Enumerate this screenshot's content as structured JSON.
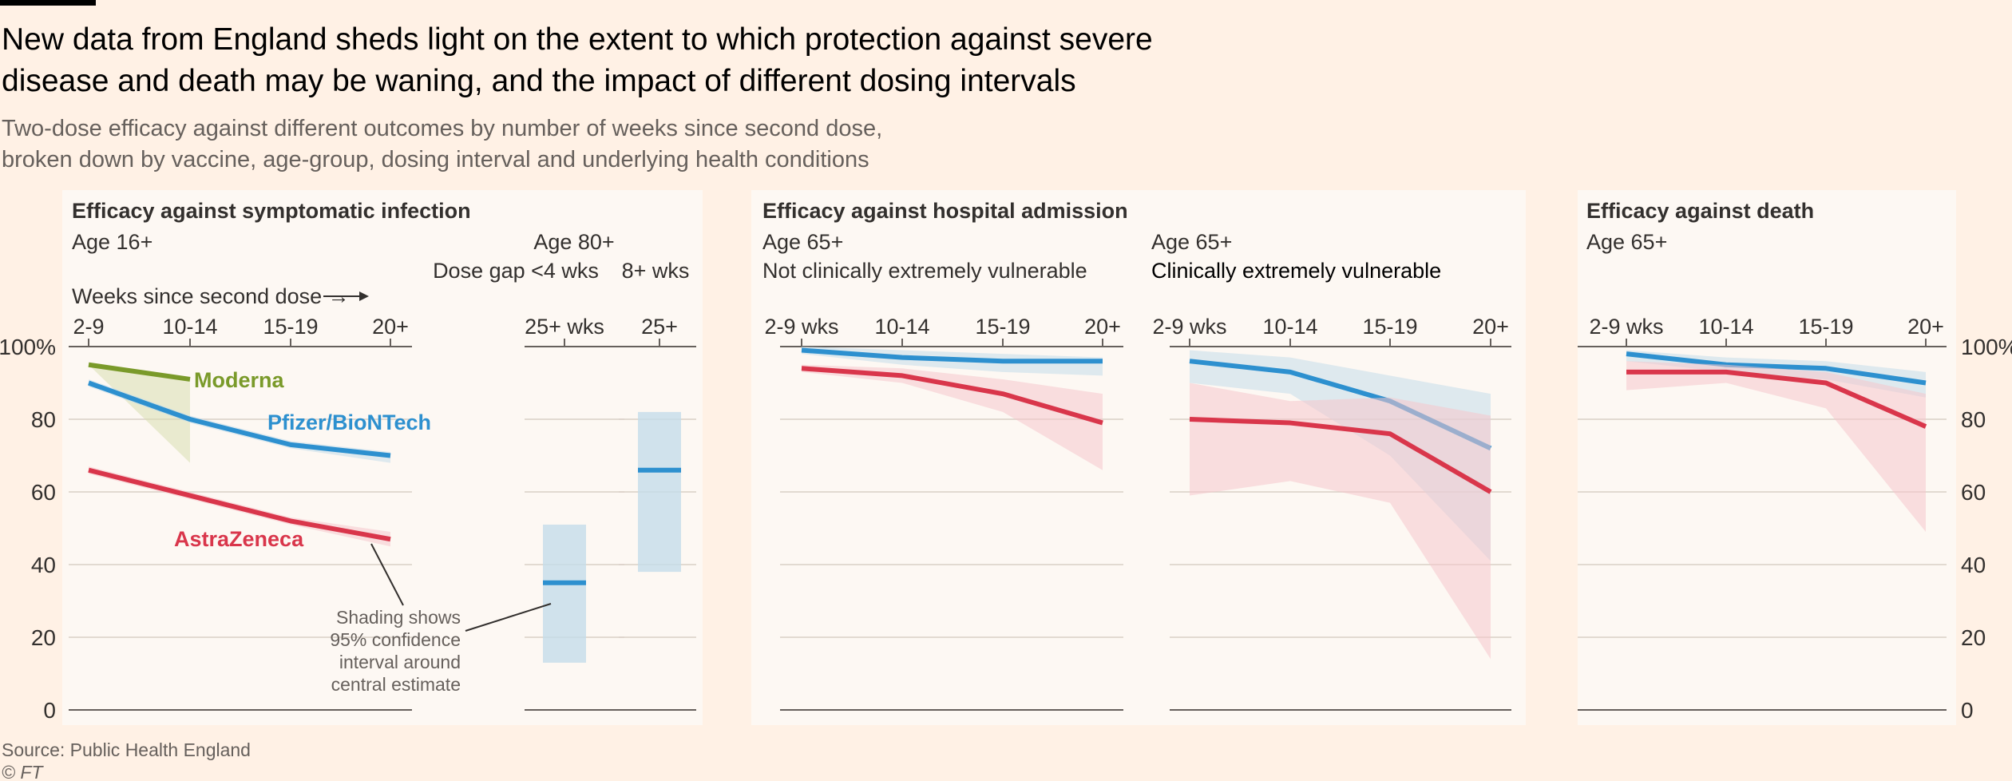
{
  "header": {
    "title_line1": "New data from England sheds light on the extent to which protection against severe",
    "title_line2": "disease and death may be waning, and the impact of different dosing intervals",
    "subtitle_line1": "Two-dose efficacy against different outcomes by number of weeks since second dose,",
    "subtitle_line2": "broken down by vaccine, age-group, dosing interval and underlying health conditions"
  },
  "colors": {
    "background": "#fff1e5",
    "panel": "#fdf8f3",
    "moderna": "#7a9a2a",
    "pfizer": "#2d90cf",
    "astrazeneca": "#d9364b",
    "moderna_ci": "#d8dfb0",
    "pfizer_ci": "#c4dcea",
    "astrazeneca_ci": "#f5c7cc",
    "grid": "#d9cfc6",
    "baseline": "#66605c"
  },
  "footer": {
    "source": "Source: Public Health England",
    "copyright": "© FT"
  },
  "chart_data": [
    {
      "id": "symptomatic",
      "type": "line",
      "title": "Efficacy against symptomatic infection",
      "group_label": "Age 16+",
      "xlabel": "Weeks since second dose →",
      "categories": [
        "2-9",
        "10-14",
        "15-19",
        "20+"
      ],
      "ylim": [
        0,
        100
      ],
      "yticks": [
        0,
        20,
        40,
        60,
        80,
        100
      ],
      "ytick_labels": [
        "0",
        "20",
        "40",
        "60",
        "80",
        "100%"
      ],
      "series": [
        {
          "name": "Moderna",
          "color_key": "moderna",
          "values": [
            95,
            91,
            null,
            null
          ],
          "ci_low": [
            95,
            68,
            null,
            null
          ],
          "ci_high": [
            95,
            91,
            null,
            null
          ]
        },
        {
          "name": "Pfizer/BioNTech",
          "color_key": "pfizer",
          "values": [
            90,
            80,
            73,
            70
          ],
          "ci_low": [
            89,
            79,
            72,
            68
          ],
          "ci_high": [
            91,
            81,
            74,
            71
          ]
        },
        {
          "name": "AstraZeneca",
          "color_key": "astrazeneca",
          "values": [
            66,
            59,
            52,
            47
          ],
          "ci_low": [
            65,
            58,
            51,
            45
          ],
          "ci_high": [
            67,
            60,
            53,
            49
          ]
        }
      ],
      "annotation": [
        "Shading shows",
        "95% confidence",
        "interval around",
        "central estimate"
      ]
    },
    {
      "id": "age80",
      "type": "bar",
      "group_label": "Age 80+",
      "panels": [
        {
          "label": "Dose gap <4 wks",
          "tick": "25+ wks",
          "series": "Pfizer/BioNTech",
          "value": 35,
          "ci_low": 13,
          "ci_high": 51
        },
        {
          "label": "8+ wks",
          "tick": "25+",
          "series": "Pfizer/BioNTech",
          "value": 66,
          "ci_low": 38,
          "ci_high": 82
        }
      ],
      "ylim": [
        0,
        100
      ]
    },
    {
      "id": "hospital",
      "type": "line",
      "title": "Efficacy against hospital admission",
      "categories": [
        "2-9 wks",
        "10-14",
        "15-19",
        "20+"
      ],
      "ylim": [
        0,
        100
      ],
      "panels": [
        {
          "label_line1": "Age 65+",
          "label_line2": "Not clinically extremely vulnerable",
          "series": [
            {
              "name": "Pfizer/BioNTech",
              "color_key": "pfizer",
              "values": [
                99,
                97,
                96,
                96
              ],
              "ci_low": [
                98,
                95,
                93,
                92
              ],
              "ci_high": [
                100,
                99,
                98,
                97
              ]
            },
            {
              "name": "AstraZeneca",
              "color_key": "astrazeneca",
              "values": [
                94,
                92,
                87,
                79
              ],
              "ci_low": [
                93,
                90,
                82,
                66
              ],
              "ci_high": [
                95,
                94,
                91,
                87
              ]
            }
          ]
        },
        {
          "label_line1": "Age 65+",
          "label_line2": "Clinically extremely vulnerable",
          "series": [
            {
              "name": "Pfizer/BioNTech",
              "color_key": "pfizer",
              "values": [
                96,
                93,
                85,
                72
              ],
              "ci_low": [
                90,
                87,
                70,
                41
              ],
              "ci_high": [
                99,
                97,
                92,
                87
              ]
            },
            {
              "name": "AstraZeneca",
              "color_key": "astrazeneca",
              "values": [
                80,
                79,
                76,
                60
              ],
              "ci_low": [
                59,
                63,
                57,
                14
              ],
              "ci_high": [
                90,
                85,
                86,
                81
              ]
            }
          ]
        }
      ]
    },
    {
      "id": "death",
      "type": "line",
      "title": "Efficacy against death",
      "group_label": "Age 65+",
      "categories": [
        "2-9 wks",
        "10-14",
        "15-19",
        "20+"
      ],
      "ylim": [
        0,
        100
      ],
      "yticks": [
        0,
        20,
        40,
        60,
        80,
        100
      ],
      "ytick_labels": [
        "0",
        "20",
        "40",
        "60",
        "80",
        "100%"
      ],
      "series": [
        {
          "name": "Pfizer/BioNTech",
          "color_key": "pfizer",
          "values": [
            98,
            95,
            94,
            90
          ],
          "ci_low": [
            96,
            93,
            91,
            86
          ],
          "ci_high": [
            99,
            97,
            96,
            93
          ]
        },
        {
          "name": "AstraZeneca",
          "color_key": "astrazeneca",
          "values": [
            93,
            93,
            90,
            78
          ],
          "ci_low": [
            88,
            90,
            83,
            49
          ],
          "ci_high": [
            96,
            95,
            93,
            87
          ]
        }
      ]
    }
  ]
}
